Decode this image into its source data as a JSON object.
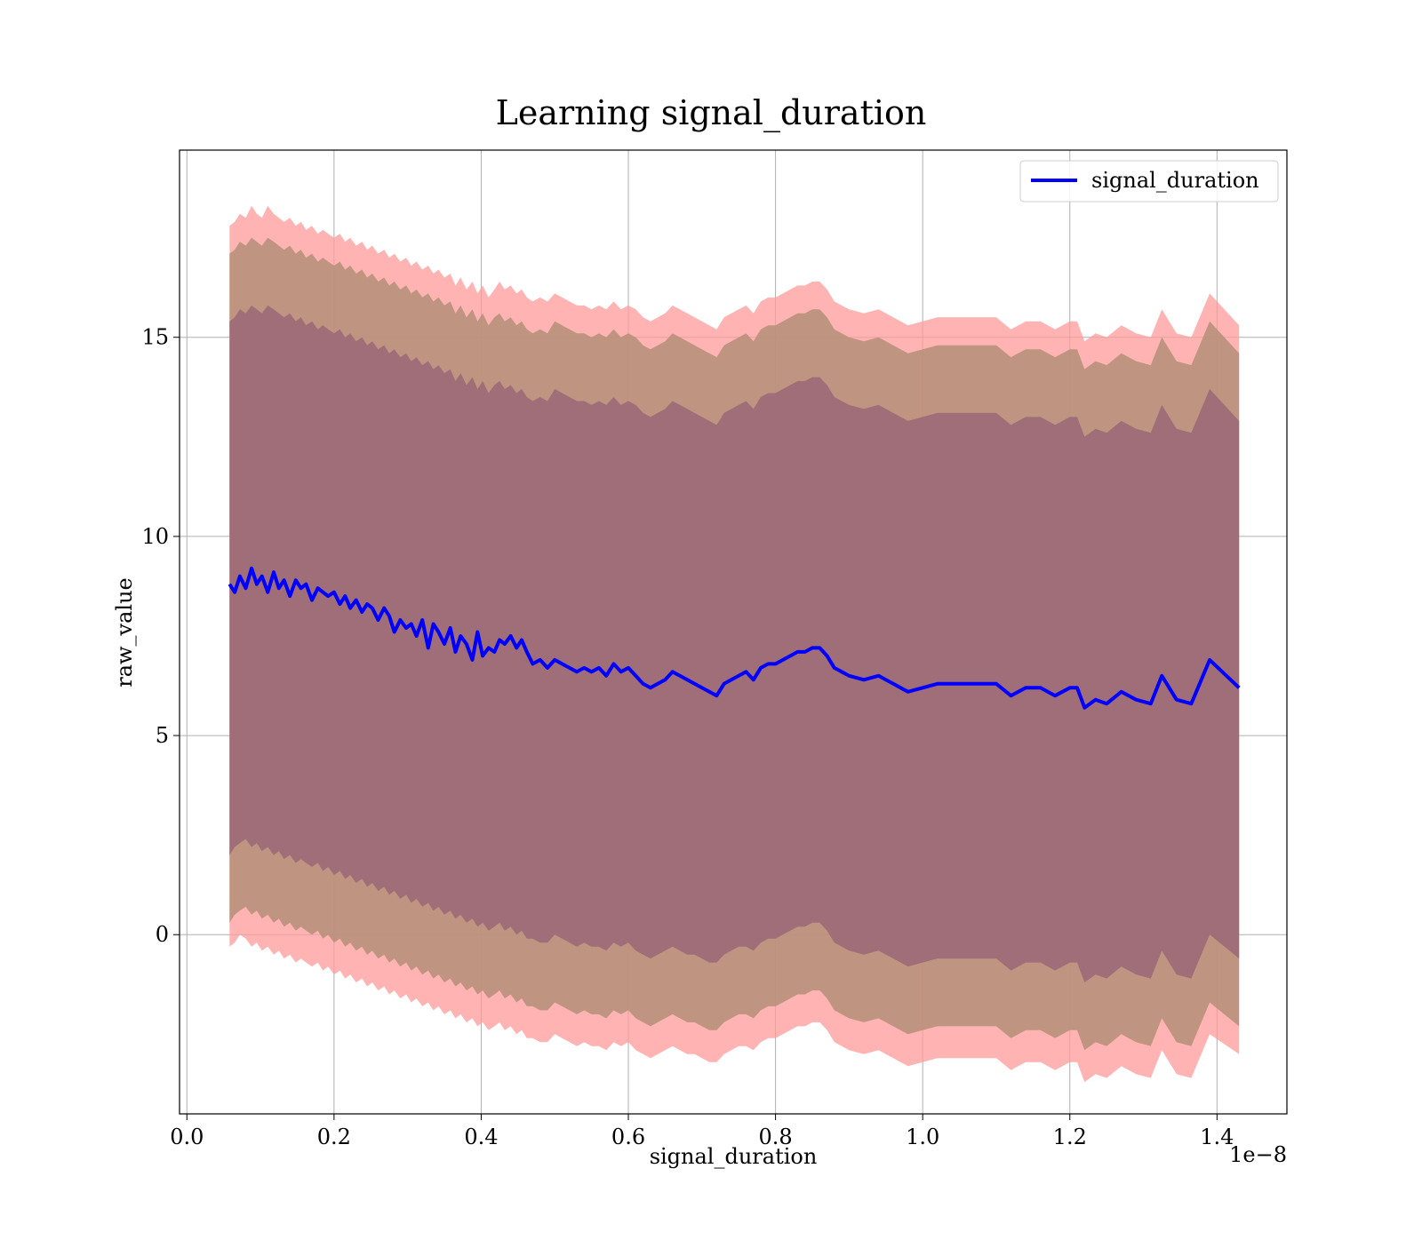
{
  "chart_data": {
    "type": "line",
    "title": "Learning signal_duration",
    "xlabel": "signal_duration",
    "ylabel": "raw_value",
    "x_offset_label": "1e−8",
    "xlim": [
      -0.01,
      1.495
    ],
    "ylim": [
      -4.5,
      19.7
    ],
    "xticks": [
      0.0,
      0.2,
      0.4,
      0.6,
      0.8,
      1.0,
      1.2,
      1.4
    ],
    "xtick_labels": [
      "0.0",
      "0.2",
      "0.4",
      "0.6",
      "0.8",
      "1.0",
      "1.2",
      "1.4"
    ],
    "yticks": [
      0,
      5,
      10,
      15
    ],
    "ytick_labels": [
      "0",
      "5",
      "10",
      "15"
    ],
    "grid": true,
    "legend": {
      "position": "top-right",
      "entries": [
        "signal_duration"
      ]
    },
    "colors": {
      "line": "#0000ff",
      "outer_band": "#ff9999",
      "middle_band": "#b8907a",
      "inner_band": "#a06e78"
    },
    "x": [
      0.058,
      0.065,
      0.072,
      0.08,
      0.088,
      0.095,
      0.102,
      0.11,
      0.118,
      0.125,
      0.132,
      0.14,
      0.148,
      0.155,
      0.162,
      0.17,
      0.178,
      0.185,
      0.192,
      0.2,
      0.208,
      0.215,
      0.222,
      0.23,
      0.238,
      0.245,
      0.252,
      0.26,
      0.268,
      0.275,
      0.282,
      0.29,
      0.298,
      0.305,
      0.312,
      0.32,
      0.328,
      0.335,
      0.342,
      0.35,
      0.358,
      0.365,
      0.372,
      0.38,
      0.388,
      0.395,
      0.402,
      0.41,
      0.418,
      0.425,
      0.432,
      0.44,
      0.448,
      0.455,
      0.462,
      0.47,
      0.48,
      0.49,
      0.5,
      0.51,
      0.52,
      0.53,
      0.54,
      0.55,
      0.56,
      0.57,
      0.58,
      0.59,
      0.6,
      0.61,
      0.62,
      0.63,
      0.64,
      0.65,
      0.66,
      0.67,
      0.68,
      0.69,
      0.7,
      0.71,
      0.72,
      0.73,
      0.74,
      0.75,
      0.76,
      0.77,
      0.78,
      0.79,
      0.8,
      0.81,
      0.82,
      0.83,
      0.84,
      0.85,
      0.86,
      0.87,
      0.88,
      0.89,
      0.9,
      0.92,
      0.94,
      0.96,
      0.98,
      1.0,
      1.02,
      1.04,
      1.06,
      1.08,
      1.1,
      1.12,
      1.14,
      1.16,
      1.18,
      1.2,
      1.21,
      1.22,
      1.235,
      1.25,
      1.27,
      1.29,
      1.31,
      1.325,
      1.345,
      1.365,
      1.39,
      1.43
    ],
    "series": [
      {
        "name": "signal_duration",
        "values": [
          8.8,
          8.6,
          9.0,
          8.7,
          9.2,
          8.8,
          9.0,
          8.6,
          9.1,
          8.7,
          8.9,
          8.5,
          8.9,
          8.7,
          8.8,
          8.4,
          8.7,
          8.6,
          8.5,
          8.6,
          8.3,
          8.5,
          8.2,
          8.4,
          8.1,
          8.3,
          8.2,
          7.9,
          8.2,
          8.0,
          7.6,
          7.9,
          7.7,
          7.8,
          7.5,
          7.9,
          7.2,
          7.8,
          7.6,
          7.3,
          7.7,
          7.1,
          7.5,
          7.3,
          6.9,
          7.6,
          7.0,
          7.2,
          7.1,
          7.4,
          7.3,
          7.5,
          7.2,
          7.4,
          7.1,
          6.8,
          6.9,
          6.7,
          6.9,
          6.8,
          6.7,
          6.6,
          6.7,
          6.6,
          6.7,
          6.5,
          6.8,
          6.6,
          6.7,
          6.5,
          6.3,
          6.2,
          6.3,
          6.4,
          6.6,
          6.5,
          6.4,
          6.3,
          6.2,
          6.1,
          6.0,
          6.3,
          6.4,
          6.5,
          6.6,
          6.4,
          6.7,
          6.8,
          6.8,
          6.9,
          7.0,
          7.1,
          7.1,
          7.2,
          7.2,
          7.0,
          6.7,
          6.6,
          6.5,
          6.4,
          6.5,
          6.3,
          6.1,
          6.2,
          6.3,
          6.3,
          6.3,
          6.3,
          6.3,
          6.0,
          6.2,
          6.2,
          6.0,
          6.2,
          6.2,
          5.7,
          5.9,
          5.8,
          6.1,
          5.9,
          5.8,
          6.5,
          5.9,
          5.8,
          6.9,
          6.2
        ]
      },
      {
        "name": "inner_band",
        "legend": false,
        "upper": [
          15.4,
          15.5,
          15.7,
          15.6,
          15.8,
          15.7,
          15.6,
          15.8,
          15.7,
          15.6,
          15.5,
          15.6,
          15.4,
          15.5,
          15.3,
          15.4,
          15.2,
          15.3,
          15.2,
          15.1,
          15.2,
          15.0,
          15.1,
          14.9,
          15.0,
          14.8,
          14.9,
          14.7,
          14.8,
          14.6,
          14.7,
          14.5,
          14.6,
          14.4,
          14.5,
          14.3,
          14.4,
          14.2,
          14.3,
          14.1,
          14.2,
          13.9,
          14.1,
          13.8,
          14.0,
          13.7,
          13.9,
          13.6,
          13.8,
          13.9,
          13.7,
          13.8,
          13.6,
          13.7,
          13.5,
          13.4,
          13.5,
          13.4,
          13.7,
          13.6,
          13.5,
          13.4,
          13.4,
          13.3,
          13.4,
          13.3,
          13.5,
          13.3,
          13.4,
          13.3,
          13.1,
          13.0,
          13.1,
          13.2,
          13.4,
          13.3,
          13.2,
          13.1,
          13.0,
          12.9,
          12.8,
          13.1,
          13.2,
          13.3,
          13.4,
          13.2,
          13.5,
          13.6,
          13.6,
          13.7,
          13.8,
          13.9,
          13.9,
          14.0,
          14.0,
          13.8,
          13.5,
          13.4,
          13.3,
          13.2,
          13.3,
          13.1,
          12.9,
          13.0,
          13.1,
          13.1,
          13.1,
          13.1,
          13.1,
          12.8,
          13.0,
          13.0,
          12.8,
          13.0,
          13.0,
          12.5,
          12.7,
          12.6,
          12.9,
          12.7,
          12.6,
          13.3,
          12.7,
          12.6,
          13.7,
          12.9
        ],
        "lower": [
          2.0,
          2.2,
          2.3,
          2.4,
          2.2,
          2.3,
          2.1,
          2.2,
          2.0,
          2.1,
          1.9,
          2.0,
          1.8,
          1.9,
          1.8,
          1.7,
          1.8,
          1.6,
          1.7,
          1.5,
          1.6,
          1.4,
          1.5,
          1.3,
          1.4,
          1.2,
          1.3,
          1.1,
          1.2,
          1.0,
          1.1,
          0.9,
          1.0,
          0.8,
          0.9,
          0.7,
          0.8,
          0.6,
          0.7,
          0.5,
          0.6,
          0.4,
          0.5,
          0.3,
          0.4,
          0.2,
          0.3,
          0.1,
          0.2,
          0.3,
          0.1,
          0.2,
          0.0,
          0.1,
          -0.1,
          -0.1,
          -0.2,
          -0.2,
          0.0,
          -0.1,
          -0.2,
          -0.3,
          -0.2,
          -0.3,
          -0.3,
          -0.4,
          -0.2,
          -0.3,
          -0.2,
          -0.4,
          -0.5,
          -0.6,
          -0.5,
          -0.4,
          -0.3,
          -0.4,
          -0.5,
          -0.5,
          -0.6,
          -0.7,
          -0.7,
          -0.5,
          -0.4,
          -0.3,
          -0.3,
          -0.4,
          -0.2,
          -0.1,
          -0.1,
          0.0,
          0.1,
          0.2,
          0.2,
          0.3,
          0.3,
          0.1,
          -0.2,
          -0.3,
          -0.4,
          -0.5,
          -0.4,
          -0.6,
          -0.8,
          -0.7,
          -0.6,
          -0.6,
          -0.6,
          -0.6,
          -0.6,
          -0.9,
          -0.7,
          -0.7,
          -0.9,
          -0.7,
          -0.7,
          -1.2,
          -1.0,
          -1.1,
          -0.8,
          -1.0,
          -1.1,
          -0.4,
          -1.0,
          -1.1,
          0.0,
          -0.6
        ]
      },
      {
        "name": "middle_band",
        "legend": false,
        "upper": [
          17.1,
          17.2,
          17.4,
          17.3,
          17.5,
          17.4,
          17.3,
          17.5,
          17.4,
          17.3,
          17.2,
          17.3,
          17.1,
          17.2,
          17.0,
          17.1,
          16.9,
          17.0,
          16.9,
          16.8,
          16.9,
          16.7,
          16.8,
          16.6,
          16.7,
          16.5,
          16.6,
          16.4,
          16.5,
          16.3,
          16.4,
          16.2,
          16.3,
          16.1,
          16.2,
          16.0,
          16.1,
          15.9,
          16.0,
          15.8,
          15.9,
          15.6,
          15.8,
          15.5,
          15.7,
          15.4,
          15.6,
          15.3,
          15.5,
          15.6,
          15.4,
          15.5,
          15.3,
          15.4,
          15.2,
          15.1,
          15.2,
          15.1,
          15.4,
          15.3,
          15.2,
          15.1,
          15.1,
          15.0,
          15.1,
          15.0,
          15.2,
          15.0,
          15.1,
          15.0,
          14.8,
          14.7,
          14.8,
          14.9,
          15.1,
          15.0,
          14.9,
          14.8,
          14.7,
          14.6,
          14.5,
          14.8,
          14.9,
          15.0,
          15.1,
          14.9,
          15.2,
          15.3,
          15.3,
          15.4,
          15.5,
          15.6,
          15.6,
          15.7,
          15.7,
          15.5,
          15.2,
          15.1,
          15.0,
          14.9,
          15.0,
          14.8,
          14.6,
          14.7,
          14.8,
          14.8,
          14.8,
          14.8,
          14.8,
          14.5,
          14.7,
          14.7,
          14.5,
          14.7,
          14.7,
          14.2,
          14.4,
          14.3,
          14.6,
          14.4,
          14.3,
          15.0,
          14.4,
          14.3,
          15.4,
          14.6
        ],
        "lower": [
          0.3,
          0.5,
          0.6,
          0.7,
          0.5,
          0.6,
          0.4,
          0.5,
          0.3,
          0.4,
          0.2,
          0.3,
          0.1,
          0.2,
          0.1,
          0.0,
          0.1,
          -0.1,
          0.0,
          -0.2,
          -0.1,
          -0.3,
          -0.2,
          -0.4,
          -0.3,
          -0.5,
          -0.4,
          -0.6,
          -0.5,
          -0.7,
          -0.6,
          -0.8,
          -0.7,
          -0.9,
          -0.8,
          -1.0,
          -0.9,
          -1.1,
          -1.0,
          -1.2,
          -1.1,
          -1.3,
          -1.2,
          -1.4,
          -1.3,
          -1.5,
          -1.4,
          -1.6,
          -1.5,
          -1.4,
          -1.6,
          -1.5,
          -1.7,
          -1.6,
          -1.8,
          -1.8,
          -1.9,
          -1.9,
          -1.7,
          -1.8,
          -1.9,
          -2.0,
          -1.9,
          -2.0,
          -2.0,
          -2.1,
          -1.9,
          -2.0,
          -1.9,
          -2.1,
          -2.2,
          -2.3,
          -2.2,
          -2.1,
          -2.0,
          -2.1,
          -2.2,
          -2.2,
          -2.3,
          -2.4,
          -2.4,
          -2.2,
          -2.1,
          -2.0,
          -2.0,
          -2.1,
          -1.9,
          -1.8,
          -1.8,
          -1.7,
          -1.6,
          -1.5,
          -1.5,
          -1.4,
          -1.4,
          -1.6,
          -1.9,
          -2.0,
          -2.1,
          -2.2,
          -2.1,
          -2.3,
          -2.5,
          -2.4,
          -2.3,
          -2.3,
          -2.3,
          -2.3,
          -2.3,
          -2.6,
          -2.4,
          -2.4,
          -2.6,
          -2.4,
          -2.4,
          -2.9,
          -2.7,
          -2.8,
          -2.5,
          -2.7,
          -2.8,
          -2.1,
          -2.7,
          -2.8,
          -1.7,
          -2.3
        ]
      },
      {
        "name": "outer_band",
        "legend": false,
        "upper": [
          17.8,
          17.9,
          18.1,
          18.0,
          18.3,
          18.1,
          18.0,
          18.3,
          18.1,
          18.0,
          17.9,
          18.0,
          17.8,
          17.9,
          17.7,
          17.8,
          17.6,
          17.7,
          17.6,
          17.5,
          17.6,
          17.4,
          17.5,
          17.3,
          17.4,
          17.2,
          17.3,
          17.1,
          17.2,
          17.0,
          17.1,
          16.9,
          17.0,
          16.8,
          16.9,
          16.7,
          16.8,
          16.6,
          16.7,
          16.5,
          16.6,
          16.3,
          16.5,
          16.2,
          16.4,
          16.1,
          16.3,
          16.0,
          16.2,
          16.4,
          16.2,
          16.3,
          16.1,
          16.2,
          16.0,
          15.9,
          16.0,
          15.9,
          16.1,
          16.0,
          15.9,
          15.8,
          15.8,
          15.7,
          15.8,
          15.7,
          15.9,
          15.7,
          15.8,
          15.7,
          15.5,
          15.4,
          15.5,
          15.6,
          15.8,
          15.7,
          15.6,
          15.5,
          15.4,
          15.3,
          15.2,
          15.5,
          15.6,
          15.7,
          15.8,
          15.6,
          15.9,
          16.0,
          16.0,
          16.1,
          16.2,
          16.3,
          16.3,
          16.4,
          16.4,
          16.2,
          15.9,
          15.8,
          15.7,
          15.6,
          15.7,
          15.5,
          15.3,
          15.4,
          15.5,
          15.5,
          15.5,
          15.5,
          15.5,
          15.2,
          15.4,
          15.4,
          15.2,
          15.4,
          15.4,
          14.9,
          15.1,
          15.0,
          15.3,
          15.1,
          15.0,
          15.7,
          15.1,
          15.0,
          16.1,
          15.3
        ],
        "lower": [
          -0.3,
          -0.2,
          0.0,
          -0.1,
          -0.3,
          -0.2,
          -0.4,
          -0.3,
          -0.5,
          -0.4,
          -0.6,
          -0.5,
          -0.7,
          -0.6,
          -0.7,
          -0.8,
          -0.7,
          -0.9,
          -0.8,
          -1.0,
          -0.9,
          -1.1,
          -1.0,
          -1.2,
          -1.1,
          -1.3,
          -1.2,
          -1.4,
          -1.3,
          -1.5,
          -1.4,
          -1.6,
          -1.5,
          -1.7,
          -1.6,
          -1.8,
          -1.7,
          -1.9,
          -1.8,
          -2.0,
          -1.9,
          -2.1,
          -2.0,
          -2.2,
          -2.1,
          -2.3,
          -2.2,
          -2.4,
          -2.3,
          -2.2,
          -2.4,
          -2.3,
          -2.5,
          -2.4,
          -2.6,
          -2.6,
          -2.7,
          -2.7,
          -2.5,
          -2.6,
          -2.7,
          -2.8,
          -2.7,
          -2.8,
          -2.8,
          -2.9,
          -2.7,
          -2.8,
          -2.7,
          -2.9,
          -3.0,
          -3.1,
          -3.0,
          -2.9,
          -2.8,
          -2.9,
          -3.0,
          -3.0,
          -3.1,
          -3.2,
          -3.2,
          -3.0,
          -2.9,
          -2.8,
          -2.8,
          -2.9,
          -2.7,
          -2.6,
          -2.6,
          -2.5,
          -2.4,
          -2.3,
          -2.3,
          -2.2,
          -2.2,
          -2.4,
          -2.7,
          -2.8,
          -2.9,
          -3.0,
          -2.9,
          -3.1,
          -3.3,
          -3.2,
          -3.1,
          -3.1,
          -3.1,
          -3.1,
          -3.1,
          -3.4,
          -3.2,
          -3.2,
          -3.4,
          -3.2,
          -3.2,
          -3.7,
          -3.5,
          -3.6,
          -3.3,
          -3.5,
          -3.6,
          -2.9,
          -3.5,
          -3.6,
          -2.5,
          -3.0
        ]
      }
    ]
  }
}
